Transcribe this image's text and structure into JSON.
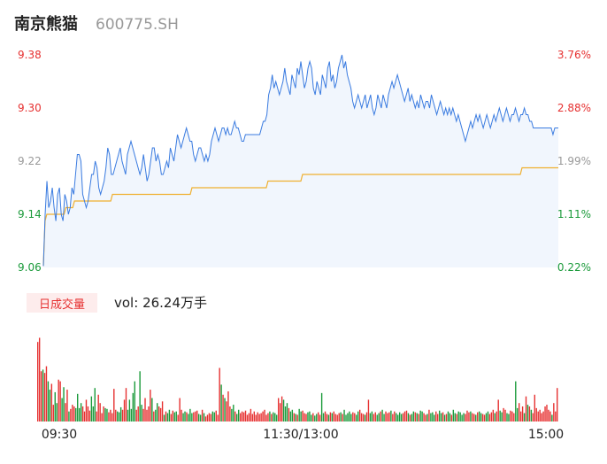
{
  "header": {
    "name": "南京熊猫",
    "code": "600775.SH"
  },
  "volume_panel": {
    "badge": "日成交量",
    "vol_label": "vol:",
    "vol_value": "26.24万手"
  },
  "colors": {
    "price_line": "#3a7be0",
    "avg_line": "#f0b030",
    "up": "#e63030",
    "down": "#1a9a3a",
    "neutral": "#999999",
    "grid": "#e6e6e6"
  },
  "chart_data": [
    {
      "type": "line",
      "title": "",
      "y_left_ticks": [
        "9.38",
        "9.30",
        "9.22",
        "9.14",
        "9.06"
      ],
      "y_right_ticks": [
        "3.76%",
        "2.88%",
        "1.99%",
        "1.11%",
        "0.22%"
      ],
      "ylim": [
        9.06,
        9.38
      ],
      "series": [
        {
          "values": [
            9.062,
            9.14,
            9.19,
            9.15,
            9.16,
            9.18,
            9.15,
            9.13,
            9.17,
            9.18,
            9.14,
            9.13,
            9.17,
            9.16,
            9.14,
            9.15,
            9.18,
            9.17,
            9.2,
            9.23,
            9.23,
            9.22,
            9.17,
            9.16,
            9.15,
            9.16,
            9.18,
            9.2,
            9.2,
            9.22,
            9.21,
            9.18,
            9.17,
            9.18,
            9.19,
            9.21,
            9.24,
            9.23,
            9.2,
            9.2,
            9.21,
            9.22,
            9.23,
            9.24,
            9.22,
            9.21,
            9.2,
            9.23,
            9.24,
            9.25,
            9.24,
            9.23,
            9.22,
            9.21,
            9.2,
            9.21,
            9.23,
            9.21,
            9.19,
            9.2,
            9.22,
            9.24,
            9.24,
            9.22,
            9.23,
            9.22,
            9.2,
            9.2,
            9.21,
            9.22,
            9.21,
            9.24,
            9.23,
            9.22,
            9.24,
            9.26,
            9.25,
            9.24,
            9.25,
            9.26,
            9.27,
            9.26,
            9.25,
            9.25,
            9.23,
            9.22,
            9.23,
            9.24,
            9.24,
            9.23,
            9.22,
            9.23,
            9.22,
            9.23,
            9.25,
            9.26,
            9.27,
            9.26,
            9.25,
            9.26,
            9.27,
            9.27,
            9.26,
            9.27,
            9.26,
            9.26,
            9.27,
            9.28,
            9.27,
            9.27,
            9.26,
            9.25,
            9.25,
            9.26,
            9.26,
            9.26,
            9.26,
            9.26,
            9.26,
            9.26,
            9.26,
            9.26,
            9.27,
            9.28,
            9.28,
            9.29,
            9.32,
            9.33,
            9.35,
            9.33,
            9.34,
            9.33,
            9.32,
            9.33,
            9.34,
            9.36,
            9.34,
            9.33,
            9.32,
            9.35,
            9.34,
            9.33,
            9.36,
            9.35,
            9.37,
            9.35,
            9.33,
            9.34,
            9.36,
            9.37,
            9.36,
            9.33,
            9.32,
            9.34,
            9.33,
            9.32,
            9.35,
            9.34,
            9.33,
            9.36,
            9.37,
            9.34,
            9.35,
            9.33,
            9.34,
            9.36,
            9.37,
            9.38,
            9.36,
            9.37,
            9.35,
            9.34,
            9.33,
            9.31,
            9.3,
            9.31,
            9.32,
            9.31,
            9.3,
            9.31,
            9.32,
            9.3,
            9.31,
            9.32,
            9.3,
            9.29,
            9.3,
            9.32,
            9.31,
            9.3,
            9.32,
            9.31,
            9.3,
            9.32,
            9.33,
            9.34,
            9.33,
            9.34,
            9.35,
            9.34,
            9.33,
            9.32,
            9.31,
            9.32,
            9.33,
            9.31,
            9.32,
            9.31,
            9.3,
            9.31,
            9.3,
            9.32,
            9.31,
            9.3,
            9.31,
            9.31,
            9.3,
            9.32,
            9.31,
            9.3,
            9.29,
            9.3,
            9.31,
            9.3,
            9.29,
            9.3,
            9.29,
            9.3,
            9.29,
            9.3,
            9.29,
            9.28,
            9.29,
            9.28,
            9.27,
            9.26,
            9.25,
            9.26,
            9.27,
            9.28,
            9.27,
            9.28,
            9.29,
            9.28,
            9.29,
            9.28,
            9.27,
            9.28,
            9.29,
            9.28,
            9.27,
            9.28,
            9.29,
            9.28,
            9.29,
            9.3,
            9.29,
            9.28,
            9.29,
            9.3,
            9.29,
            9.28,
            9.29,
            9.29,
            9.3,
            9.29,
            9.28,
            9.29,
            9.29,
            9.3,
            9.29,
            9.29,
            9.28,
            9.28,
            9.27,
            9.27,
            9.27,
            9.27,
            9.27,
            9.27,
            9.27,
            9.27,
            9.27,
            9.27,
            9.27,
            9.26,
            9.27,
            9.27,
            9.27
          ]
        },
        {
          "values": [
            9.062,
            9.13,
            9.14,
            9.14,
            9.14,
            9.14,
            9.14,
            9.14,
            9.14,
            9.14,
            9.14,
            9.14,
            9.14,
            9.15,
            9.15,
            9.15,
            9.15,
            9.15,
            9.16,
            9.16,
            9.16,
            9.16,
            9.16,
            9.16,
            9.16,
            9.16,
            9.16,
            9.16,
            9.16,
            9.16,
            9.16,
            9.16,
            9.16,
            9.16,
            9.16,
            9.16,
            9.16,
            9.16,
            9.16,
            9.16,
            9.17,
            9.17,
            9.17,
            9.17,
            9.17,
            9.17,
            9.17,
            9.17,
            9.17,
            9.17,
            9.17,
            9.17,
            9.17,
            9.17,
            9.17,
            9.17,
            9.17,
            9.17,
            9.17,
            9.17,
            9.17,
            9.17,
            9.17,
            9.17,
            9.17,
            9.17,
            9.17,
            9.17,
            9.17,
            9.17,
            9.17,
            9.17,
            9.17,
            9.17,
            9.17,
            9.17,
            9.17,
            9.17,
            9.17,
            9.17,
            9.17,
            9.17,
            9.17,
            9.17,
            9.17,
            9.17,
            9.18,
            9.18,
            9.18,
            9.18,
            9.18,
            9.18,
            9.18,
            9.18,
            9.18,
            9.18,
            9.18,
            9.18,
            9.18,
            9.18,
            9.18,
            9.18,
            9.18,
            9.18,
            9.18,
            9.18,
            9.18,
            9.18,
            9.18,
            9.18,
            9.18,
            9.18,
            9.18,
            9.18,
            9.18,
            9.18,
            9.18,
            9.18,
            9.18,
            9.18,
            9.18,
            9.18,
            9.18,
            9.18,
            9.18,
            9.18,
            9.18,
            9.18,
            9.18,
            9.18,
            9.19,
            9.19,
            9.19,
            9.19,
            9.19,
            9.19,
            9.19,
            9.19,
            9.19,
            9.19,
            9.19,
            9.19,
            9.19,
            9.19,
            9.19,
            9.19,
            9.19,
            9.19,
            9.19,
            9.19,
            9.2,
            9.2,
            9.2,
            9.2,
            9.2,
            9.2,
            9.2,
            9.2,
            9.2,
            9.2,
            9.2,
            9.2,
            9.2,
            9.2,
            9.2,
            9.2,
            9.2,
            9.2,
            9.2,
            9.2,
            9.2,
            9.2,
            9.2,
            9.2,
            9.2,
            9.2,
            9.2,
            9.2,
            9.2,
            9.2,
            9.2,
            9.2,
            9.2,
            9.2,
            9.2,
            9.2,
            9.2,
            9.2,
            9.2,
            9.2,
            9.2,
            9.2,
            9.2,
            9.2,
            9.2,
            9.2,
            9.2,
            9.2,
            9.2,
            9.2,
            9.2,
            9.2,
            9.2,
            9.2,
            9.2,
            9.2,
            9.2,
            9.2,
            9.2,
            9.2,
            9.2,
            9.2,
            9.2,
            9.2,
            9.2,
            9.2,
            9.2,
            9.2,
            9.2,
            9.2,
            9.2,
            9.2,
            9.2,
            9.2,
            9.2,
            9.2,
            9.2,
            9.2,
            9.2,
            9.2,
            9.2,
            9.2,
            9.2,
            9.2,
            9.2,
            9.2,
            9.2,
            9.2,
            9.2,
            9.2,
            9.2,
            9.2,
            9.2,
            9.2,
            9.2,
            9.2,
            9.2,
            9.2,
            9.2,
            9.2,
            9.2,
            9.2,
            9.2,
            9.2,
            9.2,
            9.2,
            9.2,
            9.2,
            9.2,
            9.2,
            9.2,
            9.2,
            9.2,
            9.2,
            9.2,
            9.2,
            9.2,
            9.2,
            9.2,
            9.2,
            9.2,
            9.2,
            9.2,
            9.2,
            9.2,
            9.2,
            9.2,
            9.21,
            9.21,
            9.21,
            9.21,
            9.21,
            9.21,
            9.21,
            9.21,
            9.21,
            9.21,
            9.21,
            9.21,
            9.21,
            9.21,
            9.21,
            9.21,
            9.21,
            9.21,
            9.21,
            9.21,
            9.21,
            9.21
          ]
        }
      ]
    },
    {
      "type": "bar",
      "title": "",
      "x_ticks": [
        "09:30",
        "11:30/13:00",
        "15:00"
      ],
      "ylim": [
        0,
        110
      ],
      "series": [
        {
          "values": [
            95,
            100,
            60,
            62,
            58,
            66,
            48,
            38,
            45,
            20,
            35,
            22,
            50,
            48,
            28,
            41,
            22,
            38,
            12,
            15,
            20,
            18,
            16,
            33,
            16,
            22,
            18,
            12,
            26,
            18,
            13,
            30,
            18,
            40,
            12,
            32,
            22,
            10,
            18,
            16,
            15,
            11,
            14,
            10,
            39,
            14,
            12,
            11,
            17,
            14,
            26,
            40,
            14,
            26,
            15,
            34,
            48,
            14,
            18,
            60,
            20,
            15,
            28,
            14,
            18,
            38,
            28,
            12,
            14,
            22,
            18,
            16,
            24,
            8,
            12,
            10,
            14,
            9,
            13,
            11,
            12,
            8,
            28,
            14,
            10,
            12,
            11,
            9,
            15,
            10,
            11,
            12,
            13,
            9,
            8,
            14,
            10,
            6,
            8,
            10,
            9,
            12,
            11,
            13,
            8,
            64,
            44,
            32,
            28,
            24,
            36,
            18,
            15,
            20,
            12,
            9,
            14,
            10,
            12,
            11,
            13,
            8,
            10,
            15,
            9,
            12,
            8,
            11,
            9,
            10,
            12,
            14,
            8,
            10,
            12,
            9,
            11,
            10,
            8,
            28,
            22,
            30,
            26,
            18,
            22,
            16,
            12,
            14,
            10,
            9,
            8,
            15,
            12,
            13,
            10,
            9,
            11,
            12,
            8,
            10,
            7,
            9,
            11,
            8,
            34,
            10,
            12,
            9,
            8,
            11,
            10,
            12,
            9,
            8,
            10,
            11,
            9,
            14,
            8,
            10,
            12,
            9,
            11,
            10,
            8,
            12,
            14,
            10,
            9,
            8,
            11,
            26,
            10,
            12,
            9,
            11,
            8,
            10,
            12,
            14,
            9,
            12,
            10,
            11,
            13,
            9,
            12,
            10,
            8,
            11,
            9,
            10,
            12,
            13,
            10,
            8,
            9,
            12,
            11,
            10,
            9,
            13,
            12,
            10,
            8,
            9,
            14,
            10,
            11,
            8,
            12,
            9,
            13,
            10,
            11,
            8,
            9,
            12,
            10,
            8,
            14,
            10,
            9,
            12,
            11,
            8,
            10,
            9,
            13,
            11,
            12,
            10,
            9,
            8,
            11,
            12,
            10,
            9,
            8,
            10,
            12,
            9,
            11,
            14,
            10,
            12,
            26,
            13,
            11,
            16,
            14,
            10,
            9,
            13,
            12,
            10,
            48,
            16,
            22,
            12,
            18,
            10,
            30,
            20,
            18,
            14,
            10,
            32,
            16,
            12,
            14,
            10,
            12,
            18,
            20,
            14,
            12,
            8,
            22,
            12,
            40
          ]
        }
      ]
    }
  ]
}
